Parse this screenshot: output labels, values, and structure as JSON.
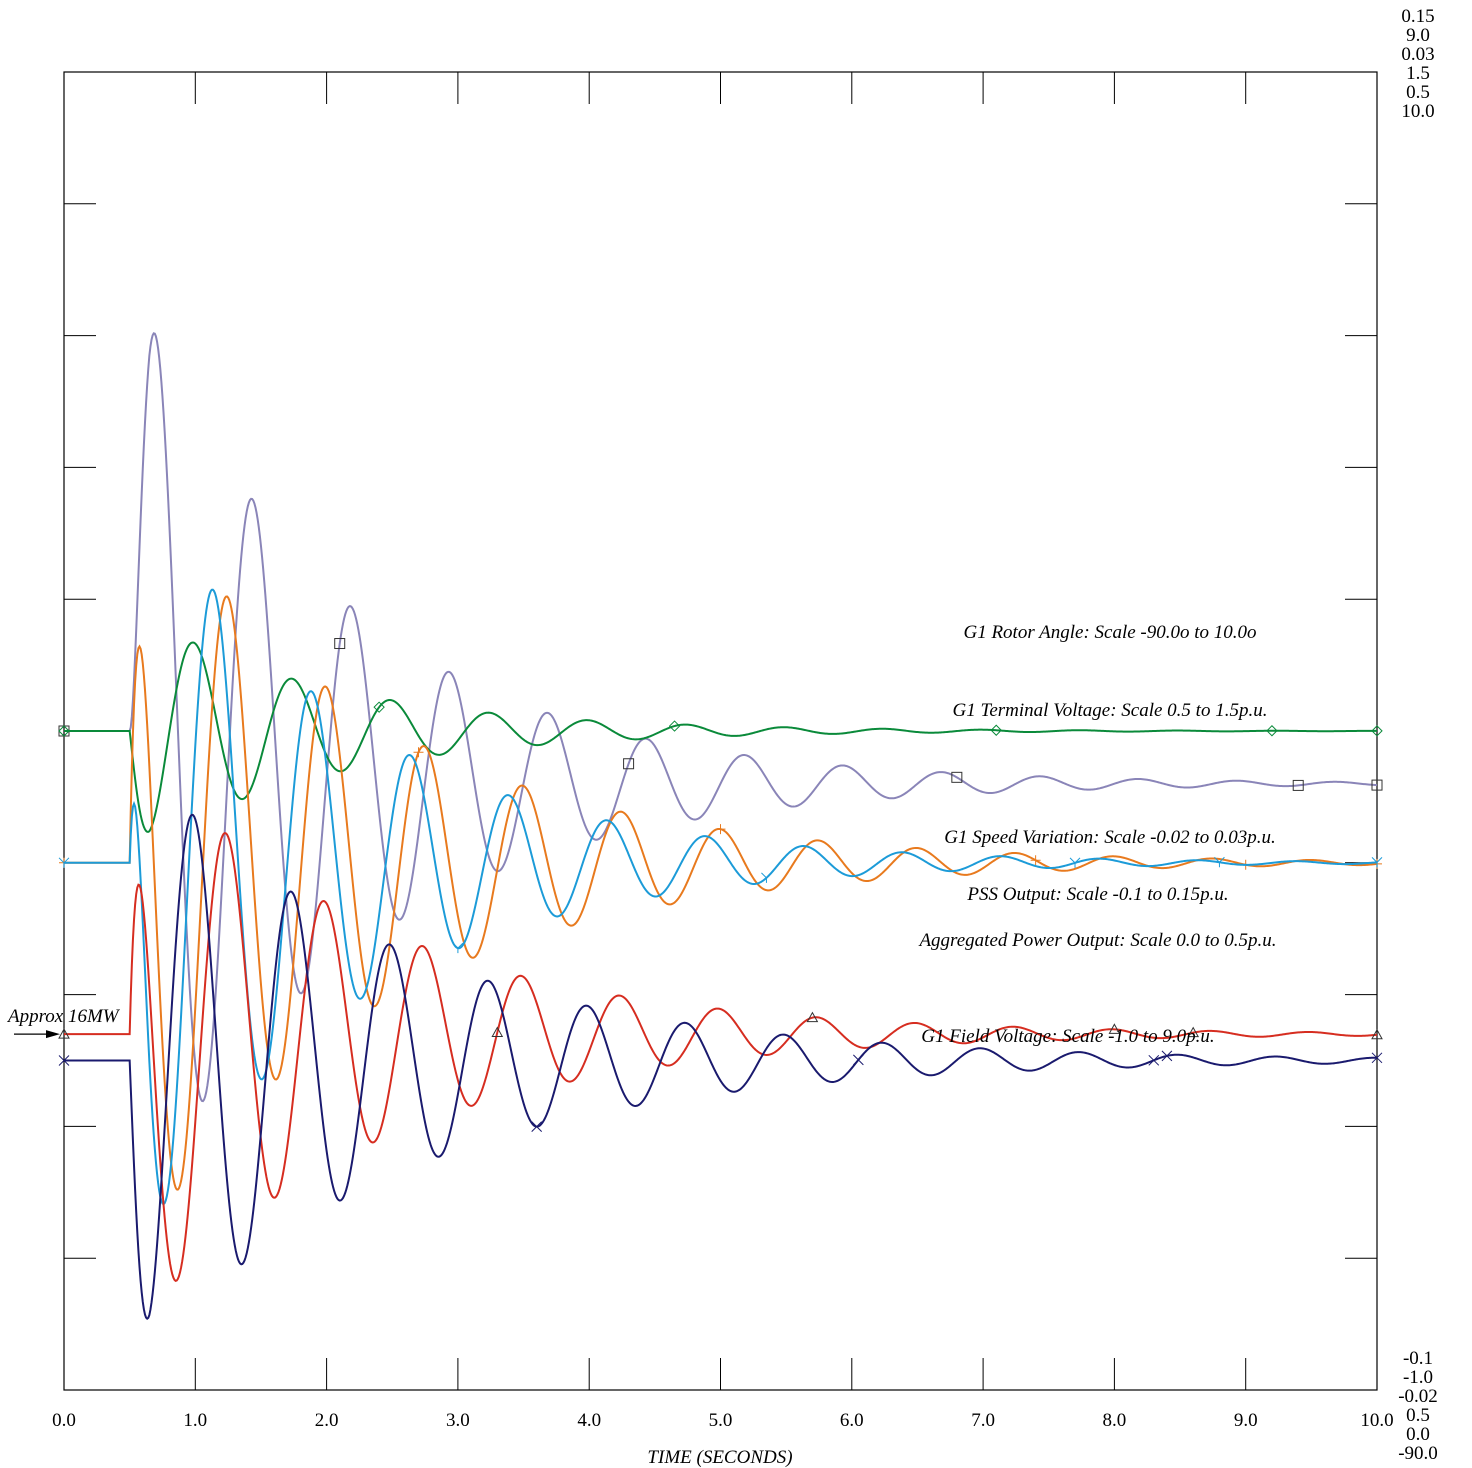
{
  "chart_data": {
    "type": "line",
    "title": "",
    "xlabel": "TIME (SECONDS)",
    "ylabel": "",
    "xlim": [
      0,
      10
    ],
    "grid": false,
    "x_ticks": [
      "0.0",
      "1.0",
      "2.0",
      "3.0",
      "4.0",
      "5.0",
      "6.0",
      "7.0",
      "8.0",
      "9.0",
      "10.0"
    ],
    "right_top_scale_labels": [
      "0.15",
      "9.0",
      "0.03",
      "1.5",
      "0.5",
      "10.0"
    ],
    "right_bottom_scale_labels": [
      "-0.1",
      "-1.0",
      "-0.02",
      "0.5",
      "0.0",
      "-90.0"
    ],
    "annotation": {
      "text": "Approx 16MW",
      "arrow_to_y_fraction": 0.27
    },
    "series": [
      {
        "name": "G1 Rotor Angle:  Scale -90.0o to 10.0o",
        "color": "#8a85b8",
        "marker": "square",
        "ylim": [
          -90,
          10
        ],
        "initial": -40,
        "final": -44,
        "t_dist": 0.5,
        "osc": {
          "amp": 33,
          "t0": 0.4,
          "period": 0.75,
          "decay": 0.6,
          "phase": 0.0
        }
      },
      {
        "name": "G1 Terminal Voltage:  Scale 0.5 to 1.5p.u.",
        "color": "#0a8a3a",
        "marker": "diamond",
        "ylim": [
          0.5,
          1.5
        ],
        "initial": 1.0,
        "final": 1.0,
        "t_dist": 0.5,
        "osc": {
          "amp": -0.085,
          "t0": 0.45,
          "period": 0.75,
          "decay": 0.7,
          "phase": 0.6
        }
      },
      {
        "name": "G1 Speed Variation:  Scale -0.02 to 0.03p.u.",
        "color": "#e87a1e",
        "marker": "plus",
        "ylim": [
          -0.02,
          0.03
        ],
        "initial": 0.0,
        "final": 0.0,
        "t_dist": 0.5,
        "osc": {
          "amp": 0.014,
          "t0": 0.5,
          "period": 0.75,
          "decay": 0.55,
          "phase": 1.6
        }
      },
      {
        "name": "PSS Output:  Scale -0.1 to 0.15p.u.",
        "color": "#1c9bd8",
        "marker": "y",
        "ylim": [
          -0.1,
          0.15
        ],
        "initial": 0.0,
        "final": 0.0,
        "t_dist": 0.5,
        "osc": {
          "amp": 0.07,
          "t0": 0.5,
          "period": 0.75,
          "decay": 0.62,
          "phase": 2.5
        }
      },
      {
        "name": "Aggregated Power Output:  Scale 0.0 to 0.5p.u.",
        "color": "#d62d20",
        "marker": "triangle",
        "ylim": [
          0.0,
          0.5
        ],
        "initial": 0.135,
        "final": 0.135,
        "t_dist": 0.5,
        "osc": {
          "amp": 0.105,
          "t0": 0.6,
          "period": 0.75,
          "decay": 0.55,
          "phase": 1.7
        }
      },
      {
        "name": "G1 Field Voltage:  Scale -1.0 to 9.0p.u.",
        "color": "#1a1a6e",
        "marker": "x",
        "ylim": [
          -1.0,
          9.0
        ],
        "initial": 1.5,
        "final": 1.5,
        "t_dist": 0.5,
        "osc": {
          "amp": 2.2,
          "t0": 0.5,
          "period": 0.75,
          "decay": 0.5,
          "phase": 3.8
        }
      }
    ]
  }
}
